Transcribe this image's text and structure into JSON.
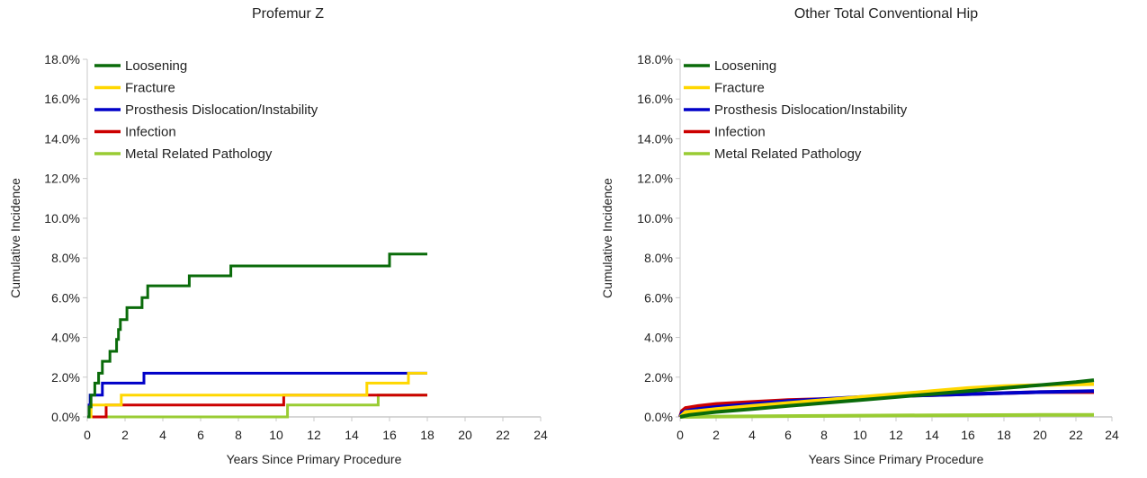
{
  "chart_data": [
    {
      "type": "line",
      "step": true,
      "title": "Profemur Z",
      "xlabel": "Years Since Primary Procedure",
      "ylabel": "Cumulative Incidence",
      "xlim": [
        0,
        24
      ],
      "ylim": [
        0,
        18
      ],
      "x_ticks": [
        "0",
        "2",
        "4",
        "6",
        "8",
        "10",
        "12",
        "14",
        "16",
        "18",
        "20",
        "22",
        "24"
      ],
      "y_ticks": [
        "0.0%",
        "2.0%",
        "4.0%",
        "6.0%",
        "8.0%",
        "10.0%",
        "12.0%",
        "14.0%",
        "16.0%",
        "18.0%"
      ],
      "grid": false,
      "legend": "top-left",
      "series": [
        {
          "name": "Loosening",
          "color": "#0a6b0a",
          "points": [
            [
              0,
              0
            ],
            [
              0.1,
              0.5
            ],
            [
              0.2,
              1.1
            ],
            [
              0.4,
              1.7
            ],
            [
              0.6,
              2.2
            ],
            [
              0.8,
              2.8
            ],
            [
              1.2,
              3.3
            ],
            [
              1.55,
              3.9
            ],
            [
              1.65,
              4.4
            ],
            [
              1.75,
              4.9
            ],
            [
              2.1,
              5.5
            ],
            [
              2.9,
              6.0
            ],
            [
              3.2,
              6.6
            ],
            [
              5.4,
              7.1
            ],
            [
              7.6,
              7.6
            ],
            [
              16.0,
              8.2
            ],
            [
              18.0,
              8.2
            ]
          ]
        },
        {
          "name": "Fracture",
          "color": "#ffd700",
          "points": [
            [
              0,
              0
            ],
            [
              0.2,
              0.6
            ],
            [
              1.8,
              1.1
            ],
            [
              14.8,
              1.7
            ],
            [
              17.0,
              2.2
            ],
            [
              18.0,
              2.2
            ]
          ]
        },
        {
          "name": "Prosthesis Dislocation/Instability",
          "color": "#0000c8",
          "points": [
            [
              0,
              0
            ],
            [
              0.1,
              0.6
            ],
            [
              0.15,
              1.1
            ],
            [
              0.8,
              1.7
            ],
            [
              3.0,
              2.2
            ],
            [
              18.0,
              2.2
            ]
          ]
        },
        {
          "name": "Infection",
          "color": "#cc0000",
          "points": [
            [
              0,
              0
            ],
            [
              1.0,
              0.6
            ],
            [
              10.4,
              1.1
            ],
            [
              18.0,
              1.1
            ]
          ]
        },
        {
          "name": "Metal Related Pathology",
          "color": "#99cc33",
          "points": [
            [
              0,
              0
            ],
            [
              10.6,
              0.6
            ],
            [
              15.4,
              1.1
            ],
            [
              18.0,
              1.1
            ]
          ]
        }
      ]
    },
    {
      "type": "line",
      "step": false,
      "title": "Other Total Conventional Hip",
      "xlabel": "Years Since Primary Procedure",
      "ylabel": "Cumulative Incidence",
      "xlim": [
        0,
        24
      ],
      "ylim": [
        0,
        18
      ],
      "x_ticks": [
        "0",
        "2",
        "4",
        "6",
        "8",
        "10",
        "12",
        "14",
        "16",
        "18",
        "20",
        "22",
        "24"
      ],
      "y_ticks": [
        "0.0%",
        "2.0%",
        "4.0%",
        "6.0%",
        "8.0%",
        "10.0%",
        "12.0%",
        "14.0%",
        "16.0%",
        "18.0%"
      ],
      "grid": false,
      "legend": "top-left",
      "series": [
        {
          "name": "Loosening",
          "color": "#0a6b0a",
          "points": [
            [
              0,
              0
            ],
            [
              0.5,
              0.1
            ],
            [
              2,
              0.25
            ],
            [
              4,
              0.4
            ],
            [
              6,
              0.55
            ],
            [
              8,
              0.7
            ],
            [
              10,
              0.85
            ],
            [
              12,
              1.0
            ],
            [
              14,
              1.15
            ],
            [
              16,
              1.3
            ],
            [
              18,
              1.45
            ],
            [
              20,
              1.6
            ],
            [
              22,
              1.75
            ],
            [
              23,
              1.85
            ]
          ]
        },
        {
          "name": "Fracture",
          "color": "#ffd700",
          "points": [
            [
              0,
              0
            ],
            [
              0.3,
              0.25
            ],
            [
              1,
              0.3
            ],
            [
              2,
              0.4
            ],
            [
              4,
              0.55
            ],
            [
              6,
              0.7
            ],
            [
              8,
              0.85
            ],
            [
              10,
              1.0
            ],
            [
              12,
              1.15
            ],
            [
              14,
              1.3
            ],
            [
              16,
              1.45
            ],
            [
              18,
              1.55
            ],
            [
              20,
              1.6
            ],
            [
              23,
              1.65
            ]
          ]
        },
        {
          "name": "Prosthesis Dislocation/Instability",
          "color": "#0000c8",
          "points": [
            [
              0,
              0
            ],
            [
              0.1,
              0.2
            ],
            [
              0.3,
              0.3
            ],
            [
              1,
              0.4
            ],
            [
              2,
              0.5
            ],
            [
              4,
              0.65
            ],
            [
              6,
              0.8
            ],
            [
              8,
              0.9
            ],
            [
              10,
              1.0
            ],
            [
              12,
              1.05
            ],
            [
              14,
              1.1
            ],
            [
              16,
              1.15
            ],
            [
              18,
              1.2
            ],
            [
              20,
              1.25
            ],
            [
              23,
              1.3
            ]
          ]
        },
        {
          "name": "Infection",
          "color": "#cc0000",
          "points": [
            [
              0,
              0
            ],
            [
              0.1,
              0.3
            ],
            [
              0.3,
              0.45
            ],
            [
              1,
              0.55
            ],
            [
              2,
              0.65
            ],
            [
              4,
              0.75
            ],
            [
              6,
              0.85
            ],
            [
              8,
              0.9
            ],
            [
              10,
              0.95
            ],
            [
              12,
              1.05
            ],
            [
              14,
              1.1
            ],
            [
              16,
              1.15
            ],
            [
              18,
              1.2
            ],
            [
              20,
              1.25
            ],
            [
              23,
              1.25
            ]
          ]
        },
        {
          "name": "Metal Related Pathology",
          "color": "#99cc33",
          "points": [
            [
              0,
              0
            ],
            [
              2,
              0.02
            ],
            [
              8,
              0.05
            ],
            [
              14,
              0.08
            ],
            [
              20,
              0.1
            ],
            [
              23,
              0.1
            ]
          ]
        }
      ]
    }
  ]
}
